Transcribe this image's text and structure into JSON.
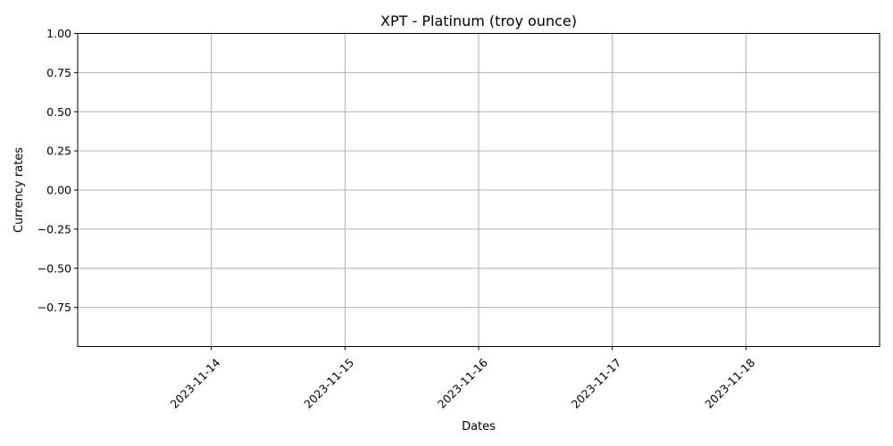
{
  "chart_data": {
    "type": "line",
    "title": "XPT - Platinum (troy ounce)",
    "xlabel": "Dates",
    "ylabel": "Currency rates",
    "x_ticks": [
      "2023-11-14",
      "2023-11-15",
      "2023-11-16",
      "2023-11-17",
      "2023-11-18"
    ],
    "y_ticks": [
      "1.00",
      "0.75",
      "0.50",
      "0.25",
      "0.00",
      "−0.25",
      "−0.50",
      "−0.75"
    ],
    "y_tick_values": [
      1.0,
      0.75,
      0.5,
      0.25,
      0.0,
      -0.25,
      -0.5,
      -0.75
    ],
    "ylim": [
      -1.0,
      1.0
    ],
    "xlim": [
      "2023-11-13",
      "2023-11-19"
    ],
    "series": [],
    "grid": true
  }
}
